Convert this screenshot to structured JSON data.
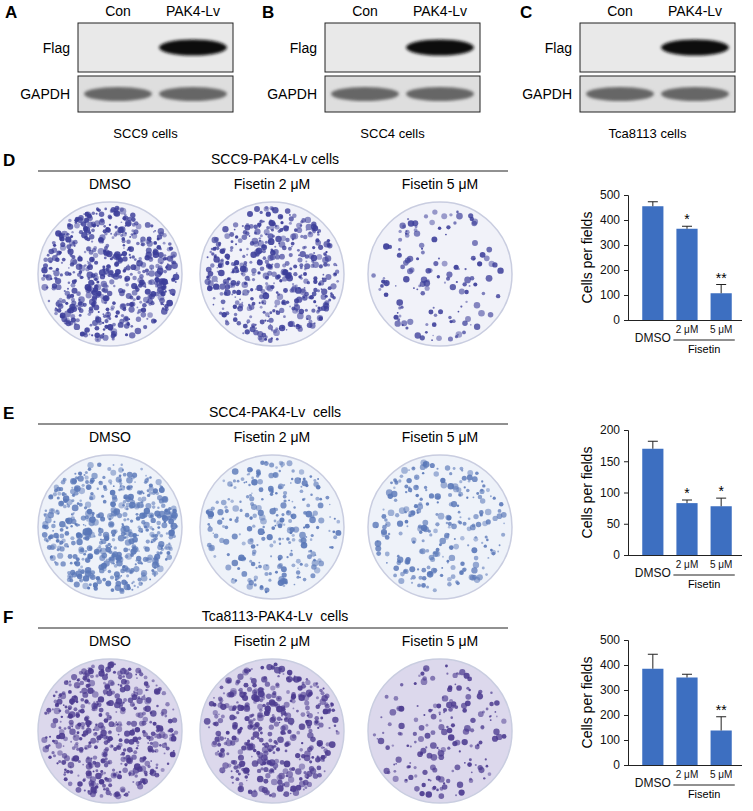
{
  "chart_data": [
    {
      "type": "bar",
      "categories": [
        "DMSO",
        "2 μM",
        "5 μM"
      ],
      "values": [
        455,
        365,
        107
      ],
      "errors": [
        18,
        10,
        35
      ],
      "annotations": [
        null,
        "*",
        "**"
      ],
      "group_label": "Fisetin",
      "y_label": "Cells per fields",
      "color": "#3d6fc1",
      "ylim": [
        0,
        500
      ],
      "yticks": [
        0,
        100,
        200,
        300,
        400,
        500
      ]
    },
    {
      "type": "bar",
      "categories": [
        "DMSO",
        "2 μM",
        "5 μM"
      ],
      "values": [
        170,
        83,
        78
      ],
      "errors": [
        12,
        5,
        13
      ],
      "annotations": [
        null,
        "*",
        "*"
      ],
      "group_label": "Fisetin",
      "y_label": "Cells per fields",
      "color": "#3d6fc1",
      "ylim": [
        0,
        200
      ],
      "yticks": [
        0,
        50,
        100,
        150,
        200
      ]
    },
    {
      "type": "bar",
      "categories": [
        "DMSO",
        "2 μM",
        "5 μM"
      ],
      "values": [
        385,
        350,
        138
      ],
      "errors": [
        58,
        13,
        55
      ],
      "annotations": [
        null,
        null,
        "**"
      ],
      "group_label": "Fisetin",
      "y_label": "Cells per fields",
      "color": "#3d6fc1",
      "ylim": [
        0,
        500
      ],
      "yticks": [
        0,
        100,
        200,
        300,
        400,
        500
      ]
    }
  ],
  "blots": [
    {
      "label": "A",
      "lanes": [
        "Con",
        "PAK4-Lv"
      ],
      "rows": [
        "Flag",
        "GAPDH"
      ],
      "caption": "SCC9 cells"
    },
    {
      "label": "B",
      "lanes": [
        "Con",
        "PAK4-Lv"
      ],
      "rows": [
        "Flag",
        "GAPDH"
      ],
      "caption": "SCC4 cells"
    },
    {
      "label": "C",
      "lanes": [
        "Con",
        "PAK4-Lv"
      ],
      "rows": [
        "Flag",
        "GAPDH"
      ],
      "caption": "Tca8113 cells"
    }
  ],
  "colony_panels": [
    {
      "label": "D",
      "title": "SCC9-PAK4-Lv cells",
      "conditions": [
        "DMSO",
        "Fisetin 2 μM",
        "Fisetin 5 μM"
      ]
    },
    {
      "label": "E",
      "title": "SCC4-PAK4-Lv  cells",
      "conditions": [
        "DMSO",
        "Fisetin 2 μM",
        "Fisetin 5 μM"
      ]
    },
    {
      "label": "F",
      "title": "Tca8113-PAK4-Lv  cells",
      "conditions": [
        "DMSO",
        "Fisetin 2 μM",
        "Fisetin 5 μM"
      ]
    }
  ]
}
